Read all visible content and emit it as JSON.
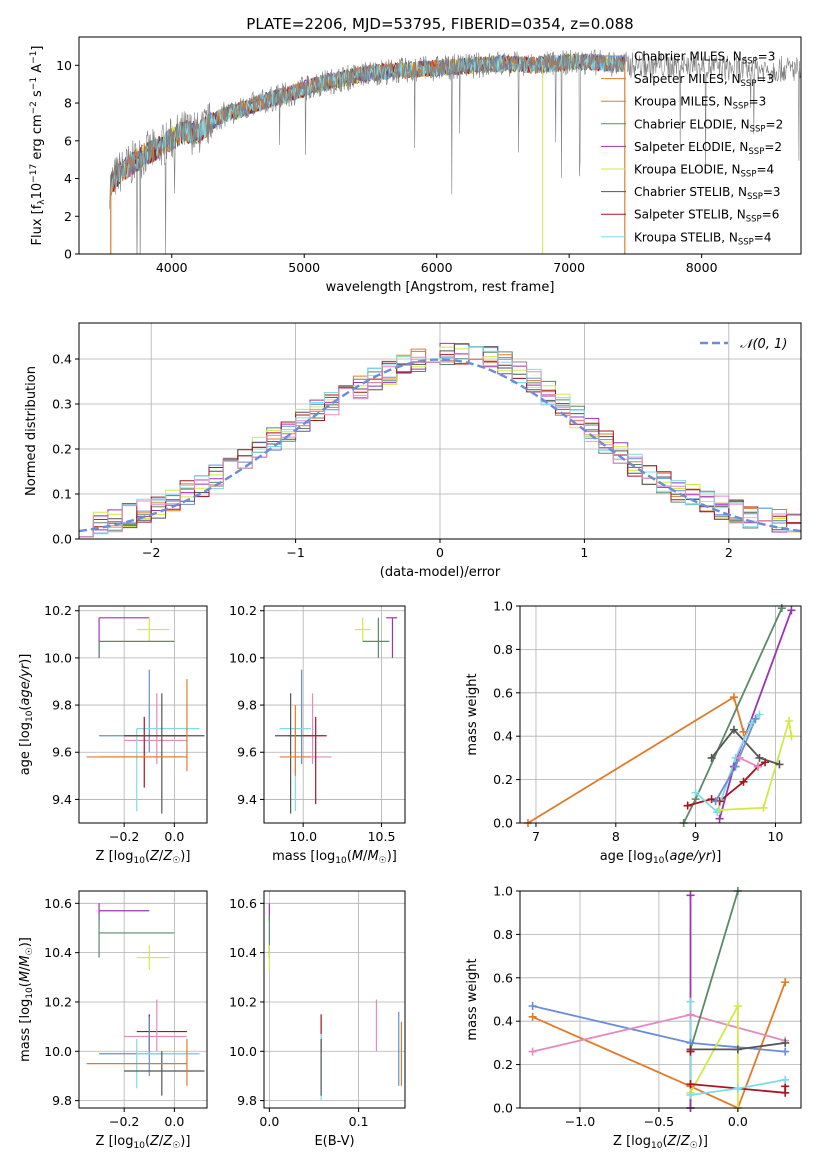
{
  "figure": {
    "title": "PLATE=2206, MJD=53795, FIBERID=0354, z=0.088"
  },
  "chart_data": [
    {
      "id": "spectrum",
      "type": "line",
      "title": "PLATE=2206, MJD=53795, FIBERID=0354, z=0.088",
      "xlabel": "wavelength [Angstrom, rest frame]",
      "ylabel": "Flux [f_λ 10^-17 erg cm^-2 s^-1 A^-1]",
      "xlim": [
        3300,
        8750
      ],
      "ylim": [
        0,
        11.5
      ],
      "xticks": [
        4000,
        5000,
        6000,
        7000,
        8000
      ],
      "yticks": [
        0,
        2,
        4,
        6,
        8,
        10
      ],
      "grid": false,
      "legend_position": "top-right",
      "continuum": {
        "x": [
          3530,
          3600,
          3700,
          3800,
          3900,
          4000,
          4100,
          4200,
          4300,
          4400,
          4500,
          4700,
          4900,
          5100,
          5300,
          5500,
          5700,
          5900,
          6100,
          6300,
          6500,
          6700,
          6900,
          7100,
          7300,
          7500,
          7700,
          7900,
          8100,
          8300
        ],
        "y": [
          3.6,
          4.3,
          4.8,
          5.3,
          5.6,
          6.1,
          6.5,
          6.4,
          7.0,
          7.4,
          7.6,
          8.1,
          8.5,
          9.0,
          9.3,
          9.6,
          9.7,
          9.8,
          9.9,
          10.0,
          10.1,
          10.0,
          10.1,
          10.2,
          10.1,
          10.0,
          10.0,
          10.0,
          9.9,
          9.8
        ]
      },
      "observed_extent": [
        3530,
        8750
      ],
      "model_extent": [
        3540,
        7420
      ],
      "series": [
        {
          "name": "Chabrier MILES, N_SSP=3",
          "color": "#6a8dd6"
        },
        {
          "name": "Salpeter MILES, N_SSP=3",
          "color": "#e07b2c"
        },
        {
          "name": "Kroupa MILES, N_SSP=3",
          "color": "#e07b2c"
        },
        {
          "name": "Chabrier ELODIE, N_SSP=2",
          "color": "#5b8a68"
        },
        {
          "name": "Salpeter ELODIE, N_SSP=2",
          "color": "#9b35b2"
        },
        {
          "name": "Kroupa ELODIE, N_SSP=4",
          "color": "#d2e84a"
        },
        {
          "name": "Chabrier STELIB, N_SSP=3",
          "color": "#555555"
        },
        {
          "name": "Salpeter STELIB, N_SSP=6",
          "color": "#a8141e"
        },
        {
          "name": "Kroupa STELIB, N_SSP=4",
          "color": "#7fdce6"
        }
      ]
    },
    {
      "id": "residuals",
      "type": "line",
      "xlabel": "(data-model)/error",
      "ylabel": "Normed distribution",
      "xlim": [
        -2.5,
        2.5
      ],
      "ylim": [
        0,
        0.48
      ],
      "xticks": [
        -2,
        -1,
        0,
        1,
        2
      ],
      "yticks": [
        0.0,
        0.1,
        0.2,
        0.3,
        0.4
      ],
      "grid": true,
      "legend_position": "top-right",
      "legend": "𝒩(0, 1)",
      "gaussian": {
        "mean": 0,
        "sigma": 1,
        "color": "#6a8dd6"
      },
      "bin_width": 0.1,
      "series_colors": [
        "#6a8dd6",
        "#e07b2c",
        "#5b8a68",
        "#9b35b2",
        "#d2e84a",
        "#555555",
        "#a8141e",
        "#7fdce6",
        "#e38ac0"
      ]
    },
    {
      "id": "age_vs_Z",
      "type": "scatter",
      "xlabel": "Z [log10(Z/Z☉)]",
      "ylabel": "age [log10(age/yr)]",
      "xlim": [
        -0.38,
        0.13
      ],
      "ylim": [
        9.3,
        10.22
      ],
      "xticks": [
        -0.2,
        0.0
      ],
      "yticks": [
        9.4,
        9.6,
        9.8,
        10.0,
        10.2
      ],
      "grid": true,
      "points": [
        {
          "color": "#9b35b2",
          "x": -0.3,
          "xlo": -0.3,
          "xhi": -0.1,
          "y": 10.17,
          "ylo": 10.0,
          "yhi": 10.17
        },
        {
          "color": "#d2e84a",
          "x": -0.1,
          "xlo": -0.15,
          "xhi": -0.02,
          "y": 10.12,
          "ylo": 10.07,
          "yhi": 10.17
        },
        {
          "color": "#5b8a68",
          "x": -0.3,
          "xlo": -0.3,
          "xhi": 0.0,
          "y": 10.07,
          "ylo": 10.0,
          "yhi": 10.07
        },
        {
          "color": "#6a8dd6",
          "x": -0.1,
          "xlo": -0.3,
          "xhi": 0.05,
          "y": 9.67,
          "ylo": 9.6,
          "yhi": 9.95
        },
        {
          "color": "#e38ac0",
          "x": -0.07,
          "xlo": -0.2,
          "xhi": 0.05,
          "y": 9.65,
          "ylo": 9.55,
          "yhi": 9.85
        },
        {
          "color": "#7fdce6",
          "x": -0.15,
          "xlo": -0.15,
          "xhi": 0.1,
          "y": 9.7,
          "ylo": 9.35,
          "yhi": 9.7
        },
        {
          "color": "#a8141e",
          "x": -0.12,
          "xlo": -0.2,
          "xhi": 0.05,
          "y": 9.67,
          "ylo": 9.45,
          "yhi": 9.75
        },
        {
          "color": "#555555",
          "x": -0.05,
          "xlo": -0.2,
          "xhi": 0.12,
          "y": 9.67,
          "ylo": 9.34,
          "yhi": 9.85
        },
        {
          "color": "#e07b2c",
          "x": 0.05,
          "xlo": -0.35,
          "xhi": 0.05,
          "y": 9.58,
          "ylo": 9.52,
          "yhi": 9.91
        },
        {
          "color": "#e07b2c",
          "x": -0.2,
          "xlo": -0.3,
          "xhi": 0.03,
          "y": 9.58,
          "ylo": 9.58,
          "yhi": 9.58
        }
      ]
    },
    {
      "id": "age_vs_mass",
      "type": "scatter",
      "xlabel": "mass [log10(M/M☉)]",
      "ylabel": "",
      "xlim": [
        9.75,
        10.65
      ],
      "ylim": [
        9.3,
        10.22
      ],
      "xticks": [
        10.0,
        10.5
      ],
      "yticks": [
        9.4,
        9.6,
        9.8,
        10.0,
        10.2
      ],
      "grid": true,
      "points": [
        {
          "color": "#9b35b2",
          "x": 10.57,
          "xlo": 10.53,
          "xhi": 10.6,
          "y": 10.17,
          "ylo": 10.0,
          "yhi": 10.17
        },
        {
          "color": "#d2e84a",
          "x": 10.38,
          "xlo": 10.33,
          "xhi": 10.43,
          "y": 10.12,
          "ylo": 10.07,
          "yhi": 10.17
        },
        {
          "color": "#5b8a68",
          "x": 10.48,
          "xlo": 10.38,
          "xhi": 10.55,
          "y": 10.07,
          "ylo": 10.0,
          "yhi": 10.17
        },
        {
          "color": "#6a8dd6",
          "x": 9.99,
          "xlo": 9.9,
          "xhi": 10.05,
          "y": 9.67,
          "ylo": 9.55,
          "yhi": 9.95
        },
        {
          "color": "#e38ac0",
          "x": 10.06,
          "xlo": 10.0,
          "xhi": 10.18,
          "y": 9.58,
          "ylo": 9.55,
          "yhi": 9.85
        },
        {
          "color": "#7fdce6",
          "x": 9.95,
          "xlo": 9.85,
          "xhi": 10.05,
          "y": 9.7,
          "ylo": 9.35,
          "yhi": 9.7
        },
        {
          "color": "#a8141e",
          "x": 10.08,
          "xlo": 10.0,
          "xhi": 10.15,
          "y": 9.67,
          "ylo": 9.38,
          "yhi": 9.75
        },
        {
          "color": "#555555",
          "x": 9.92,
          "xlo": 9.82,
          "xhi": 10.0,
          "y": 9.67,
          "ylo": 9.34,
          "yhi": 9.85
        },
        {
          "color": "#e07b2c",
          "x": 9.95,
          "xlo": 9.85,
          "xhi": 10.05,
          "y": 9.58,
          "ylo": 9.5,
          "yhi": 9.8
        }
      ]
    },
    {
      "id": "weight_vs_age",
      "type": "line",
      "xlabel": "age [log10(age/yr)]",
      "ylabel": "mass weight",
      "xlim": [
        6.8,
        10.32
      ],
      "ylim": [
        0,
        1.0
      ],
      "xticks": [
        7,
        8,
        9,
        10
      ],
      "yticks": [
        0.0,
        0.2,
        0.4,
        0.6,
        0.8,
        1.0
      ],
      "grid": true,
      "series": [
        {
          "color": "#e07b2c",
          "x": [
            6.9,
            9.48,
            9.6
          ],
          "y": [
            0.0,
            0.58,
            0.42
          ]
        },
        {
          "color": "#5b8a68",
          "x": [
            8.85,
            9.0,
            10.08
          ],
          "y": [
            0.0,
            0.11,
            0.99
          ]
        },
        {
          "color": "#9b35b2",
          "x": [
            9.3,
            9.48,
            10.2
          ],
          "y": [
            0.02,
            0.26,
            0.98
          ]
        },
        {
          "color": "#d2e84a",
          "x": [
            9.3,
            9.85,
            10.17,
            10.2
          ],
          "y": [
            0.06,
            0.07,
            0.47,
            0.4
          ]
        },
        {
          "color": "#555555",
          "x": [
            9.2,
            9.48,
            9.8,
            10.05
          ],
          "y": [
            0.3,
            0.43,
            0.3,
            0.27
          ]
        },
        {
          "color": "#a8141e",
          "x": [
            8.9,
            9.2,
            9.3,
            9.6,
            9.78,
            9.87
          ],
          "y": [
            0.08,
            0.11,
            0.1,
            0.19,
            0.26,
            0.28
          ]
        },
        {
          "color": "#7fdce6",
          "x": [
            9.0,
            9.27,
            9.5,
            9.7,
            9.8
          ],
          "y": [
            0.14,
            0.05,
            0.3,
            0.46,
            0.5
          ]
        },
        {
          "color": "#6a8dd6",
          "x": [
            9.25,
            9.5,
            9.75
          ],
          "y": [
            0.1,
            0.26,
            0.48
          ]
        },
        {
          "color": "#e38ac0",
          "x": [
            9.55,
            9.78
          ],
          "y": [
            0.3,
            0.26
          ]
        }
      ]
    },
    {
      "id": "mass_vs_Z",
      "type": "scatter",
      "xlabel": "Z [log10(Z/Z☉)]",
      "ylabel": "mass [log10(M/M☉)]",
      "xlim": [
        -0.38,
        0.13
      ],
      "ylim": [
        9.77,
        10.65
      ],
      "xticks": [
        -0.2,
        0.0
      ],
      "yticks": [
        9.8,
        10.0,
        10.2,
        10.4,
        10.6
      ],
      "grid": true,
      "points": [
        {
          "color": "#9b35b2",
          "x": -0.3,
          "xlo": -0.3,
          "xhi": -0.1,
          "y": 10.57,
          "ylo": 10.53,
          "yhi": 10.6
        },
        {
          "color": "#5b8a68",
          "x": -0.3,
          "xlo": -0.3,
          "xhi": 0.0,
          "y": 10.48,
          "ylo": 10.38,
          "yhi": 10.55
        },
        {
          "color": "#d2e84a",
          "x": -0.1,
          "xlo": -0.15,
          "xhi": -0.02,
          "y": 10.38,
          "ylo": 10.33,
          "yhi": 10.43
        },
        {
          "color": "#a8141e",
          "x": -0.1,
          "xlo": -0.15,
          "xhi": 0.05,
          "y": 10.08,
          "ylo": 10.0,
          "yhi": 10.15
        },
        {
          "color": "#e38ac0",
          "x": -0.07,
          "xlo": -0.2,
          "xhi": 0.05,
          "y": 10.06,
          "ylo": 10.0,
          "yhi": 10.21
        },
        {
          "color": "#6a8dd6",
          "x": -0.1,
          "xlo": -0.3,
          "xhi": 0.1,
          "y": 9.99,
          "ylo": 9.9,
          "yhi": 10.14
        },
        {
          "color": "#7fdce6",
          "x": -0.15,
          "xlo": -0.15,
          "xhi": 0.1,
          "y": 9.99,
          "ylo": 9.85,
          "yhi": 10.05
        },
        {
          "color": "#555555",
          "x": -0.05,
          "xlo": -0.2,
          "xhi": 0.12,
          "y": 9.92,
          "ylo": 9.82,
          "yhi": 10.0
        },
        {
          "color": "#e07b2c",
          "x": 0.05,
          "xlo": -0.35,
          "xhi": 0.05,
          "y": 9.95,
          "ylo": 9.86,
          "yhi": 10.05
        }
      ]
    },
    {
      "id": "mass_vs_ebv",
      "type": "scatter",
      "xlabel": "E(B-V)",
      "ylabel": "",
      "xlim": [
        -0.006,
        0.152
      ],
      "ylim": [
        9.77,
        10.65
      ],
      "xticks": [
        0.0,
        0.1
      ],
      "yticks": [
        9.8,
        10.0,
        10.2,
        10.4,
        10.6
      ],
      "grid": true,
      "points": [
        {
          "color": "#9b35b2",
          "x": 0.0,
          "xlo": 0.0,
          "xhi": 0.0,
          "y": 10.57,
          "ylo": 10.53,
          "yhi": 10.6
        },
        {
          "color": "#5b8a68",
          "x": 0.0,
          "xlo": 0.0,
          "xhi": 0.0,
          "y": 10.48,
          "ylo": 10.38,
          "yhi": 10.55
        },
        {
          "color": "#d2e84a",
          "x": 0.0,
          "xlo": 0.0,
          "xhi": 0.0,
          "y": 10.38,
          "ylo": 10.33,
          "yhi": 10.43
        },
        {
          "color": "#a8141e",
          "x": 0.058,
          "xlo": 0.058,
          "xhi": 0.058,
          "y": 10.08,
          "ylo": 10.0,
          "yhi": 10.15
        },
        {
          "color": "#7fdce6",
          "x": 0.058,
          "xlo": 0.058,
          "xhi": 0.058,
          "y": 9.99,
          "ylo": 9.8,
          "yhi": 10.07
        },
        {
          "color": "#555555",
          "x": 0.058,
          "xlo": 0.058,
          "xhi": 0.058,
          "y": 9.92,
          "ylo": 9.82,
          "yhi": 10.05
        },
        {
          "color": "#e38ac0",
          "x": 0.12,
          "xlo": 0.12,
          "xhi": 0.12,
          "y": 10.06,
          "ylo": 10.0,
          "yhi": 10.21
        },
        {
          "color": "#6a8dd6",
          "x": 0.145,
          "xlo": 0.145,
          "xhi": 0.145,
          "y": 9.99,
          "ylo": 9.86,
          "yhi": 10.16
        },
        {
          "color": "#e07b2c",
          "x": 0.148,
          "xlo": 0.148,
          "xhi": 0.148,
          "y": 9.95,
          "ylo": 9.86,
          "yhi": 10.12
        }
      ]
    },
    {
      "id": "weight_vs_Z",
      "type": "line",
      "xlabel": "Z [log10(Z/Z☉)]",
      "ylabel": "mass weight",
      "xlim": [
        -1.38,
        0.4
      ],
      "ylim": [
        0,
        1.0
      ],
      "xticks": [
        -1.0,
        -0.5,
        0.0
      ],
      "yticks": [
        0.0,
        0.2,
        0.4,
        0.6,
        0.8,
        1.0
      ],
      "grid": true,
      "series": [
        {
          "color": "#6a8dd6",
          "x": [
            -1.3,
            -0.3,
            0.3
          ],
          "y": [
            0.47,
            0.3,
            0.26
          ]
        },
        {
          "color": "#e07b2c",
          "x": [
            -1.3,
            -0.3,
            0.0,
            0.3
          ],
          "y": [
            0.42,
            0.1,
            0.0,
            0.58
          ]
        },
        {
          "color": "#e38ac0",
          "x": [
            -1.3,
            -0.3,
            0.3
          ],
          "y": [
            0.26,
            0.43,
            0.31
          ]
        },
        {
          "color": "#5b8a68",
          "x": [
            -0.3,
            -0.3,
            0.0
          ],
          "y": [
            0.0,
            0.27,
            1.0
          ]
        },
        {
          "color": "#9b35b2",
          "x": [
            -0.3,
            -0.3
          ],
          "y": [
            0.0,
            0.98
          ]
        },
        {
          "color": "#d2e84a",
          "x": [
            -0.3,
            0.0,
            0.0
          ],
          "y": [
            0.07,
            0.47,
            0.0
          ]
        },
        {
          "color": "#555555",
          "x": [
            -0.3,
            0.0,
            0.3
          ],
          "y": [
            0.27,
            0.27,
            0.3
          ]
        },
        {
          "color": "#a8141e",
          "x": [
            -0.3,
            -0.3,
            0.3,
            0.3
          ],
          "y": [
            0.26,
            0.11,
            0.07,
            0.1
          ]
        },
        {
          "color": "#7fdce6",
          "x": [
            -0.3,
            -0.3,
            0.0,
            0.3
          ],
          "y": [
            0.49,
            0.06,
            0.09,
            0.13
          ]
        }
      ]
    }
  ]
}
